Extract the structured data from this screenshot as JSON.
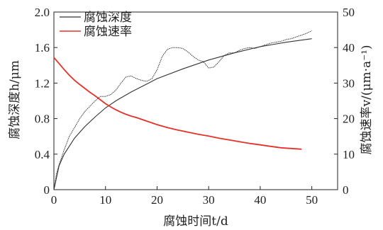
{
  "chart_data": {
    "type": "line",
    "title": "",
    "xlabel": "腐蚀时间t/d",
    "ylabel_left": "腐蚀深度h/μm",
    "ylabel_right": "腐蚀速率v/(μm·a⁻¹)",
    "xlim": [
      0,
      55
    ],
    "ylim_left": [
      0,
      2.0
    ],
    "ylim_right": [
      0,
      50
    ],
    "x_ticks": [
      0,
      10,
      20,
      30,
      40,
      50
    ],
    "y_left_ticks": [
      "0",
      "0.4",
      "0.8",
      "1.2",
      "1.6",
      "2.0"
    ],
    "y_right_ticks": [
      "0",
      "10",
      "20",
      "30",
      "40",
      "50"
    ],
    "legend_position": "top-left",
    "series": [
      {
        "name": "腐蚀深度",
        "axis": "left",
        "color": "#333333",
        "measured": [
          [
            0,
            0.0
          ],
          [
            0.5,
            0.18
          ],
          [
            1,
            0.28
          ],
          [
            2,
            0.45
          ],
          [
            3,
            0.6
          ],
          [
            4,
            0.7
          ],
          [
            5,
            0.8
          ],
          [
            6,
            0.88
          ],
          [
            7,
            0.94
          ],
          [
            8,
            1.0
          ],
          [
            9,
            1.05
          ],
          [
            10,
            1.05
          ],
          [
            11,
            1.07
          ],
          [
            12,
            1.12
          ],
          [
            13,
            1.2
          ],
          [
            14,
            1.27
          ],
          [
            15,
            1.28
          ],
          [
            16,
            1.25
          ],
          [
            17,
            1.23
          ],
          [
            18,
            1.22
          ],
          [
            19,
            1.25
          ],
          [
            20,
            1.35
          ],
          [
            21,
            1.5
          ],
          [
            22,
            1.58
          ],
          [
            23,
            1.6
          ],
          [
            24,
            1.6
          ],
          [
            25,
            1.59
          ],
          [
            26,
            1.55
          ],
          [
            27,
            1.5
          ],
          [
            28,
            1.46
          ],
          [
            29,
            1.44
          ],
          [
            30,
            1.37
          ],
          [
            31,
            1.38
          ],
          [
            32,
            1.44
          ],
          [
            33,
            1.51
          ],
          [
            34,
            1.54
          ],
          [
            35,
            1.54
          ],
          [
            36,
            1.57
          ],
          [
            37,
            1.59
          ],
          [
            38,
            1.6
          ],
          [
            39,
            1.59
          ],
          [
            40,
            1.61
          ],
          [
            41,
            1.63
          ],
          [
            42,
            1.65
          ],
          [
            43,
            1.66
          ],
          [
            44,
            1.67
          ],
          [
            45,
            1.69
          ],
          [
            46,
            1.7
          ],
          [
            47,
            1.72
          ],
          [
            48,
            1.74
          ],
          [
            49,
            1.76
          ],
          [
            50,
            1.79
          ]
        ],
        "fit": [
          [
            0,
            0.0
          ],
          [
            1,
            0.27
          ],
          [
            2,
            0.4
          ],
          [
            4,
            0.58
          ],
          [
            6,
            0.71
          ],
          [
            8,
            0.82
          ],
          [
            10,
            0.92
          ],
          [
            12,
            1.0
          ],
          [
            15,
            1.1
          ],
          [
            18,
            1.19
          ],
          [
            20,
            1.25
          ],
          [
            25,
            1.36
          ],
          [
            30,
            1.46
          ],
          [
            35,
            1.54
          ],
          [
            40,
            1.61
          ],
          [
            45,
            1.66
          ],
          [
            50,
            1.7
          ]
        ]
      },
      {
        "name": "腐蚀速率",
        "axis": "right",
        "color": "#e8302a",
        "values": [
          [
            0,
            37.2
          ],
          [
            1,
            35.5
          ],
          [
            2,
            33.8
          ],
          [
            3,
            32.2
          ],
          [
            4,
            30.8
          ],
          [
            5,
            29.6
          ],
          [
            6,
            28.5
          ],
          [
            7,
            27.4
          ],
          [
            8,
            26.4
          ],
          [
            9,
            25.3
          ],
          [
            10,
            24.2
          ],
          [
            11,
            23.3
          ],
          [
            12,
            22.5
          ],
          [
            13,
            21.8
          ],
          [
            14,
            21.2
          ],
          [
            15,
            20.7
          ],
          [
            16,
            20.3
          ],
          [
            17,
            19.8
          ],
          [
            18,
            19.3
          ],
          [
            19,
            18.8
          ],
          [
            20,
            18.3
          ],
          [
            22,
            17.5
          ],
          [
            24,
            16.8
          ],
          [
            26,
            16.2
          ],
          [
            28,
            15.6
          ],
          [
            30,
            15.1
          ],
          [
            32,
            14.5
          ],
          [
            34,
            14.0
          ],
          [
            36,
            13.5
          ],
          [
            38,
            13.0
          ],
          [
            40,
            12.6
          ],
          [
            42,
            12.2
          ],
          [
            44,
            11.8
          ],
          [
            46,
            11.6
          ],
          [
            48,
            11.4
          ]
        ]
      }
    ]
  }
}
